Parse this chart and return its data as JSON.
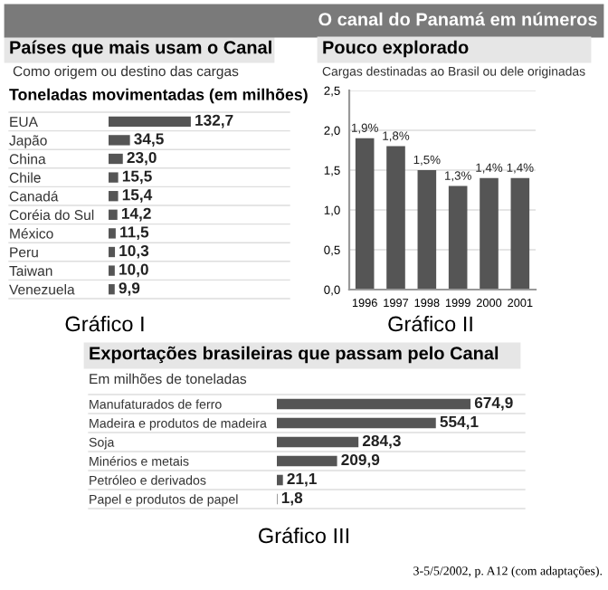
{
  "chart_data": [
    {
      "type": "bar",
      "orientation": "horizontal",
      "title": "Países que mais usam o Canal",
      "subtitle": "Como origem ou destino das cargas",
      "annotations": [
        "O canal do Panamá em números",
        "Toneladas movimentadas (em milhões)",
        "Gráfico I"
      ],
      "categories": [
        "EUA",
        "Japão",
        "China",
        "Chile",
        "Canadá",
        "Coréia do Sul",
        "México",
        "Peru",
        "Taiwan",
        "Venezuela"
      ],
      "values": [
        132.7,
        34.5,
        23.0,
        15.5,
        15.4,
        14.2,
        11.5,
        10.3,
        10.0,
        9.9
      ],
      "value_labels": [
        "132,7",
        "34,5",
        "23,0",
        "15,5",
        "15,4",
        "14,2",
        "11,5",
        "10,3",
        "10,0",
        "9,9"
      ],
      "color": "#555555"
    },
    {
      "type": "bar",
      "title": "Pouco explorado",
      "subtitle": "Cargas destinadas ao Brasil ou dele originadas",
      "annotations": [
        "Gráfico II"
      ],
      "categories": [
        "1996",
        "1997",
        "1998",
        "1999",
        "2000",
        "2001"
      ],
      "values": [
        1.9,
        1.8,
        1.5,
        1.3,
        1.4,
        1.4
      ],
      "value_labels": [
        "1,9%",
        "1,8%",
        "1,5%",
        "1,3%",
        "1,4%",
        "1,4%"
      ],
      "color": "#555555",
      "ylim": [
        0,
        2.5
      ],
      "yticks": [
        {
          "value": 0,
          "label": "0,0"
        },
        {
          "value": 0.5,
          "label": "0,5"
        },
        {
          "value": 1.0,
          "label": "1,0"
        },
        {
          "value": 1.5,
          "label": "1,5"
        },
        {
          "value": 2.0,
          "label": "2,0"
        },
        {
          "value": 2.5,
          "label": "2,5"
        }
      ],
      "grid": "y"
    },
    {
      "type": "bar",
      "orientation": "horizontal",
      "title": "Exportações brasileiras que passam pelo Canal",
      "subtitle": "Em milhões de toneladas",
      "annotations": [
        "Gráfico III",
        "3-5/5/2002, p. A12 (com adaptações)."
      ],
      "categories": [
        "Manufaturados de ferro",
        "Madeira e produtos de madeira",
        "Soja",
        "Minérios e metais",
        "Petróleo e derivados",
        "Papel e produtos de papel"
      ],
      "values": [
        674.9,
        554.1,
        284.3,
        209.9,
        21.1,
        1.8
      ],
      "value_labels": [
        "674,9",
        "554,1",
        "284,3",
        "209,9",
        "21,1",
        "1,8"
      ],
      "color": "#555555"
    }
  ]
}
